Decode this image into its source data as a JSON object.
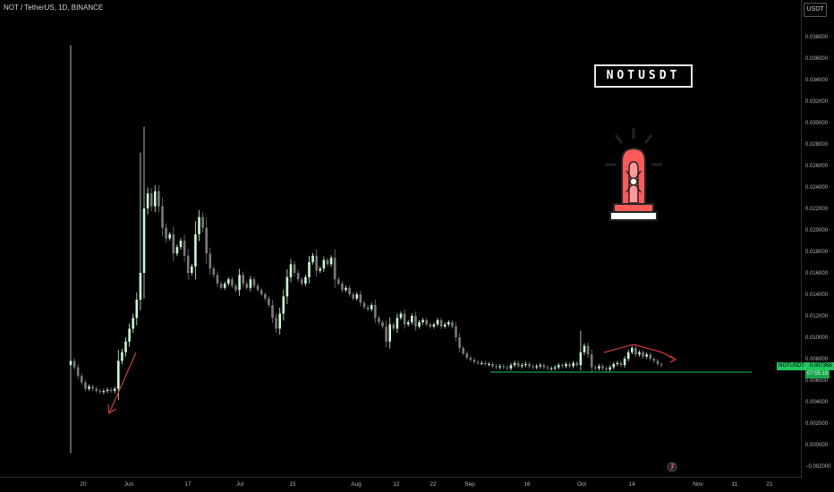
{
  "header": {
    "symbol": "NOT / TetherUS, 1D, BINANCE",
    "unit": "USDT"
  },
  "badge": "NOTUSDT",
  "price_tag": {
    "symbol": "NOTUSDT",
    "price": "0.007368",
    "countdown": "07:55:18"
  },
  "colors": {
    "up": "#c8f7d2",
    "down": "#7a7a7a",
    "background": "#000000",
    "support": "#22c55e",
    "annotation": "#ef4444"
  },
  "icons": [
    "siren-icon",
    "tradingview-logo-icon"
  ],
  "chart_data": {
    "type": "candlestick",
    "title": "NOT / TetherUS, 1D, BINANCE",
    "ylabel": "USDT",
    "ylim": [
      -0.0022,
      0.04
    ],
    "y_ticks": [
      "0.038000",
      "0.036000",
      "0.034000",
      "0.032000",
      "0.030000",
      "0.028000",
      "0.026000",
      "0.024000",
      "0.022000",
      "0.020000",
      "0.018000",
      "0.016000",
      "0.014000",
      "0.012000",
      "0.010000",
      "0.008000",
      "0.006000",
      "0.004000",
      "0.002000",
      "0.000000",
      "−0.002000"
    ],
    "x_ticks": [
      "20",
      "Jun",
      "17",
      "Jul",
      "15",
      "Aug",
      "12",
      "22",
      "Sep",
      "16",
      "Oct",
      "14",
      "Nov",
      "11",
      "21"
    ],
    "support_level": 0.0067,
    "grid": false,
    "legend": "none",
    "closes": [
      0.0078,
      0.0072,
      0.0064,
      0.0058,
      0.0052,
      0.0054,
      0.0052,
      0.005,
      0.0049,
      0.005,
      0.0051,
      0.005,
      0.0052,
      0.0078,
      0.0086,
      0.0096,
      0.0108,
      0.0118,
      0.0135,
      0.016,
      0.022,
      0.0234,
      0.0222,
      0.0236,
      0.0222,
      0.0202,
      0.0192,
      0.0196,
      0.0178,
      0.0184,
      0.019,
      0.0176,
      0.016,
      0.0166,
      0.0196,
      0.0212,
      0.0202,
      0.0178,
      0.0164,
      0.0158,
      0.015,
      0.0146,
      0.015,
      0.0154,
      0.0148,
      0.0144,
      0.0158,
      0.015,
      0.0146,
      0.0154,
      0.0148,
      0.0144,
      0.014,
      0.0136,
      0.013,
      0.0118,
      0.0108,
      0.0122,
      0.0138,
      0.0156,
      0.0168,
      0.016,
      0.0154,
      0.015,
      0.0156,
      0.017,
      0.0176,
      0.0162,
      0.0164,
      0.0172,
      0.0168,
      0.0174,
      0.0154,
      0.015,
      0.0144,
      0.0146,
      0.014,
      0.0136,
      0.014,
      0.0132,
      0.0128,
      0.0126,
      0.013,
      0.0118,
      0.0114,
      0.011,
      0.0096,
      0.0112,
      0.0108,
      0.0118,
      0.0122,
      0.0112,
      0.0114,
      0.012,
      0.011,
      0.0114,
      0.0116,
      0.0112,
      0.011,
      0.0112,
      0.0116,
      0.011,
      0.0112,
      0.0114,
      0.011,
      0.01,
      0.009,
      0.0085,
      0.0081,
      0.0079,
      0.0077,
      0.0076,
      0.0076,
      0.0075,
      0.0075,
      0.0073,
      0.0072,
      0.0073,
      0.0072,
      0.0071,
      0.0074,
      0.0076,
      0.0073,
      0.0074,
      0.0075,
      0.0073,
      0.0072,
      0.0073,
      0.0074,
      0.0072,
      0.0071,
      0.0071,
      0.0072,
      0.0074,
      0.0073,
      0.0075,
      0.0073,
      0.0076,
      0.0074,
      0.0086,
      0.0092,
      0.0084,
      0.0072,
      0.0071,
      0.0073,
      0.0071,
      0.007,
      0.0072,
      0.0075,
      0.0076,
      0.0074,
      0.008,
      0.0086,
      0.009,
      0.0084,
      0.0086,
      0.0082,
      0.0084,
      0.008,
      0.0078,
      0.0075,
      0.0074
    ]
  }
}
